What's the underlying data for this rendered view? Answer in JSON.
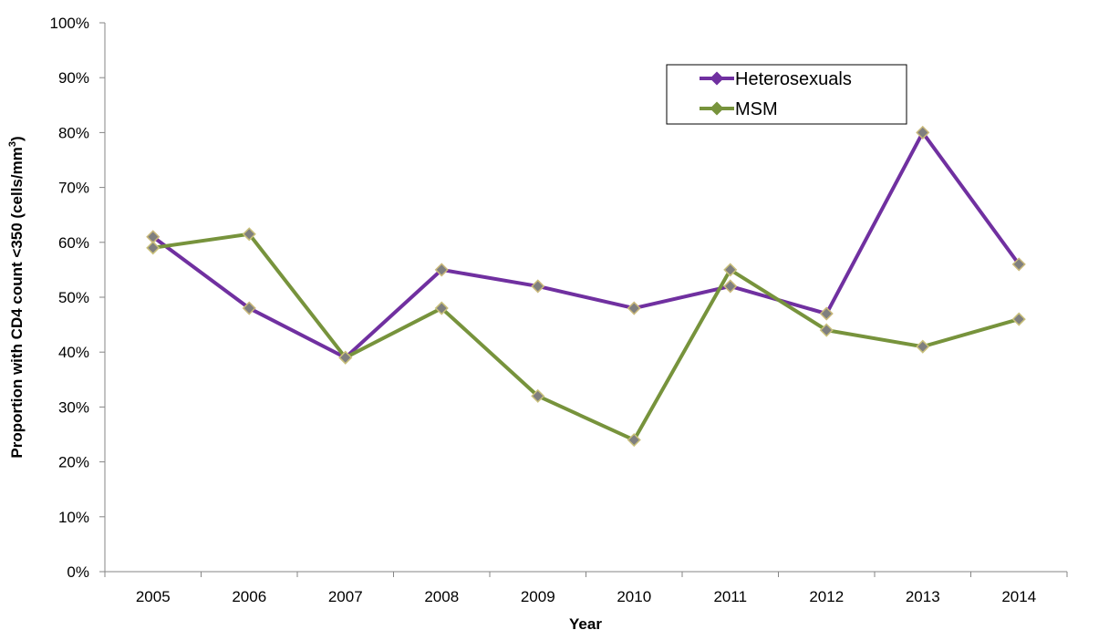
{
  "chart_data": {
    "type": "line",
    "x": [
      "2005",
      "2006",
      "2007",
      "2008",
      "2009",
      "2010",
      "2011",
      "2012",
      "2013",
      "2014"
    ],
    "series": [
      {
        "name": "Heterosexuals",
        "color": "#7030a0",
        "values": [
          61,
          48,
          39,
          55,
          52,
          48,
          52,
          47,
          80,
          56
        ]
      },
      {
        "name": "MSM",
        "color": "#77933c",
        "values": [
          59,
          61.5,
          39,
          48,
          32,
          24,
          55,
          44,
          41,
          46
        ]
      }
    ],
    "marker_fill": "#7f7f7f",
    "xlabel": "Year",
    "ylabel": "Proportion with CD4 count <350 (cells/mm",
    "ylabel_superscript": "3",
    "ylabel_suffix": ")",
    "ylim": [
      0,
      100
    ],
    "yticks": [
      "0%",
      "10%",
      "20%",
      "30%",
      "40%",
      "50%",
      "60%",
      "70%",
      "80%",
      "90%",
      "100%"
    ],
    "grid": false,
    "legend_position": "top-right"
  }
}
